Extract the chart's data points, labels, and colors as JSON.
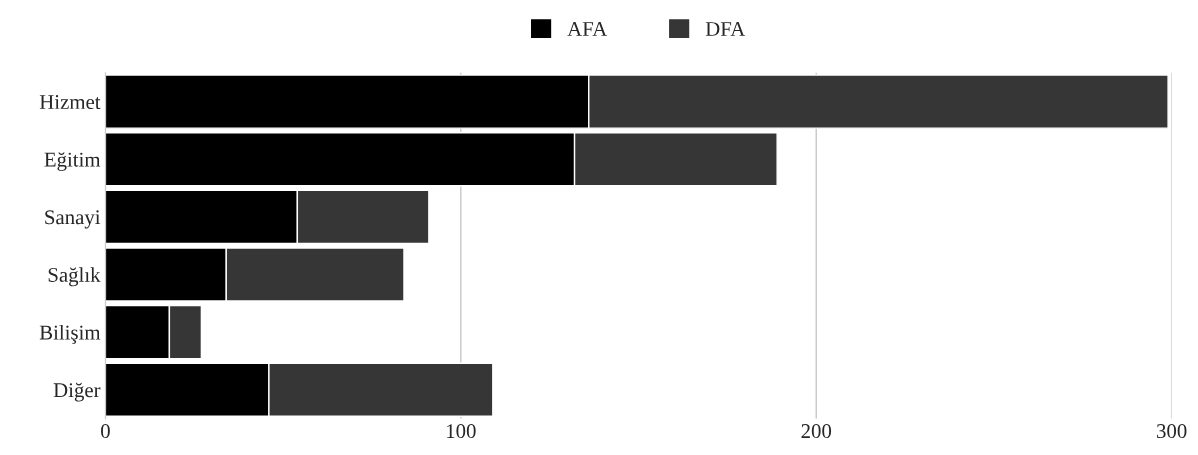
{
  "chart_data": {
    "type": "bar",
    "orientation": "horizontal",
    "stacked": true,
    "categories": [
      "Hizmet",
      "Eğitim",
      "Sanayi",
      "Sağlık",
      "Bilişim",
      "Diğer"
    ],
    "series": [
      {
        "name": "AFA",
        "color": "#000000",
        "values": [
          136,
          132,
          54,
          34,
          18,
          46
        ]
      },
      {
        "name": "DFA",
        "color": "#363636",
        "values": [
          163,
          57,
          37,
          50,
          9,
          63
        ]
      }
    ],
    "xlim": [
      0,
      300
    ],
    "xticks": [
      0,
      100,
      200,
      300
    ],
    "grid": "x",
    "legend": "top"
  }
}
